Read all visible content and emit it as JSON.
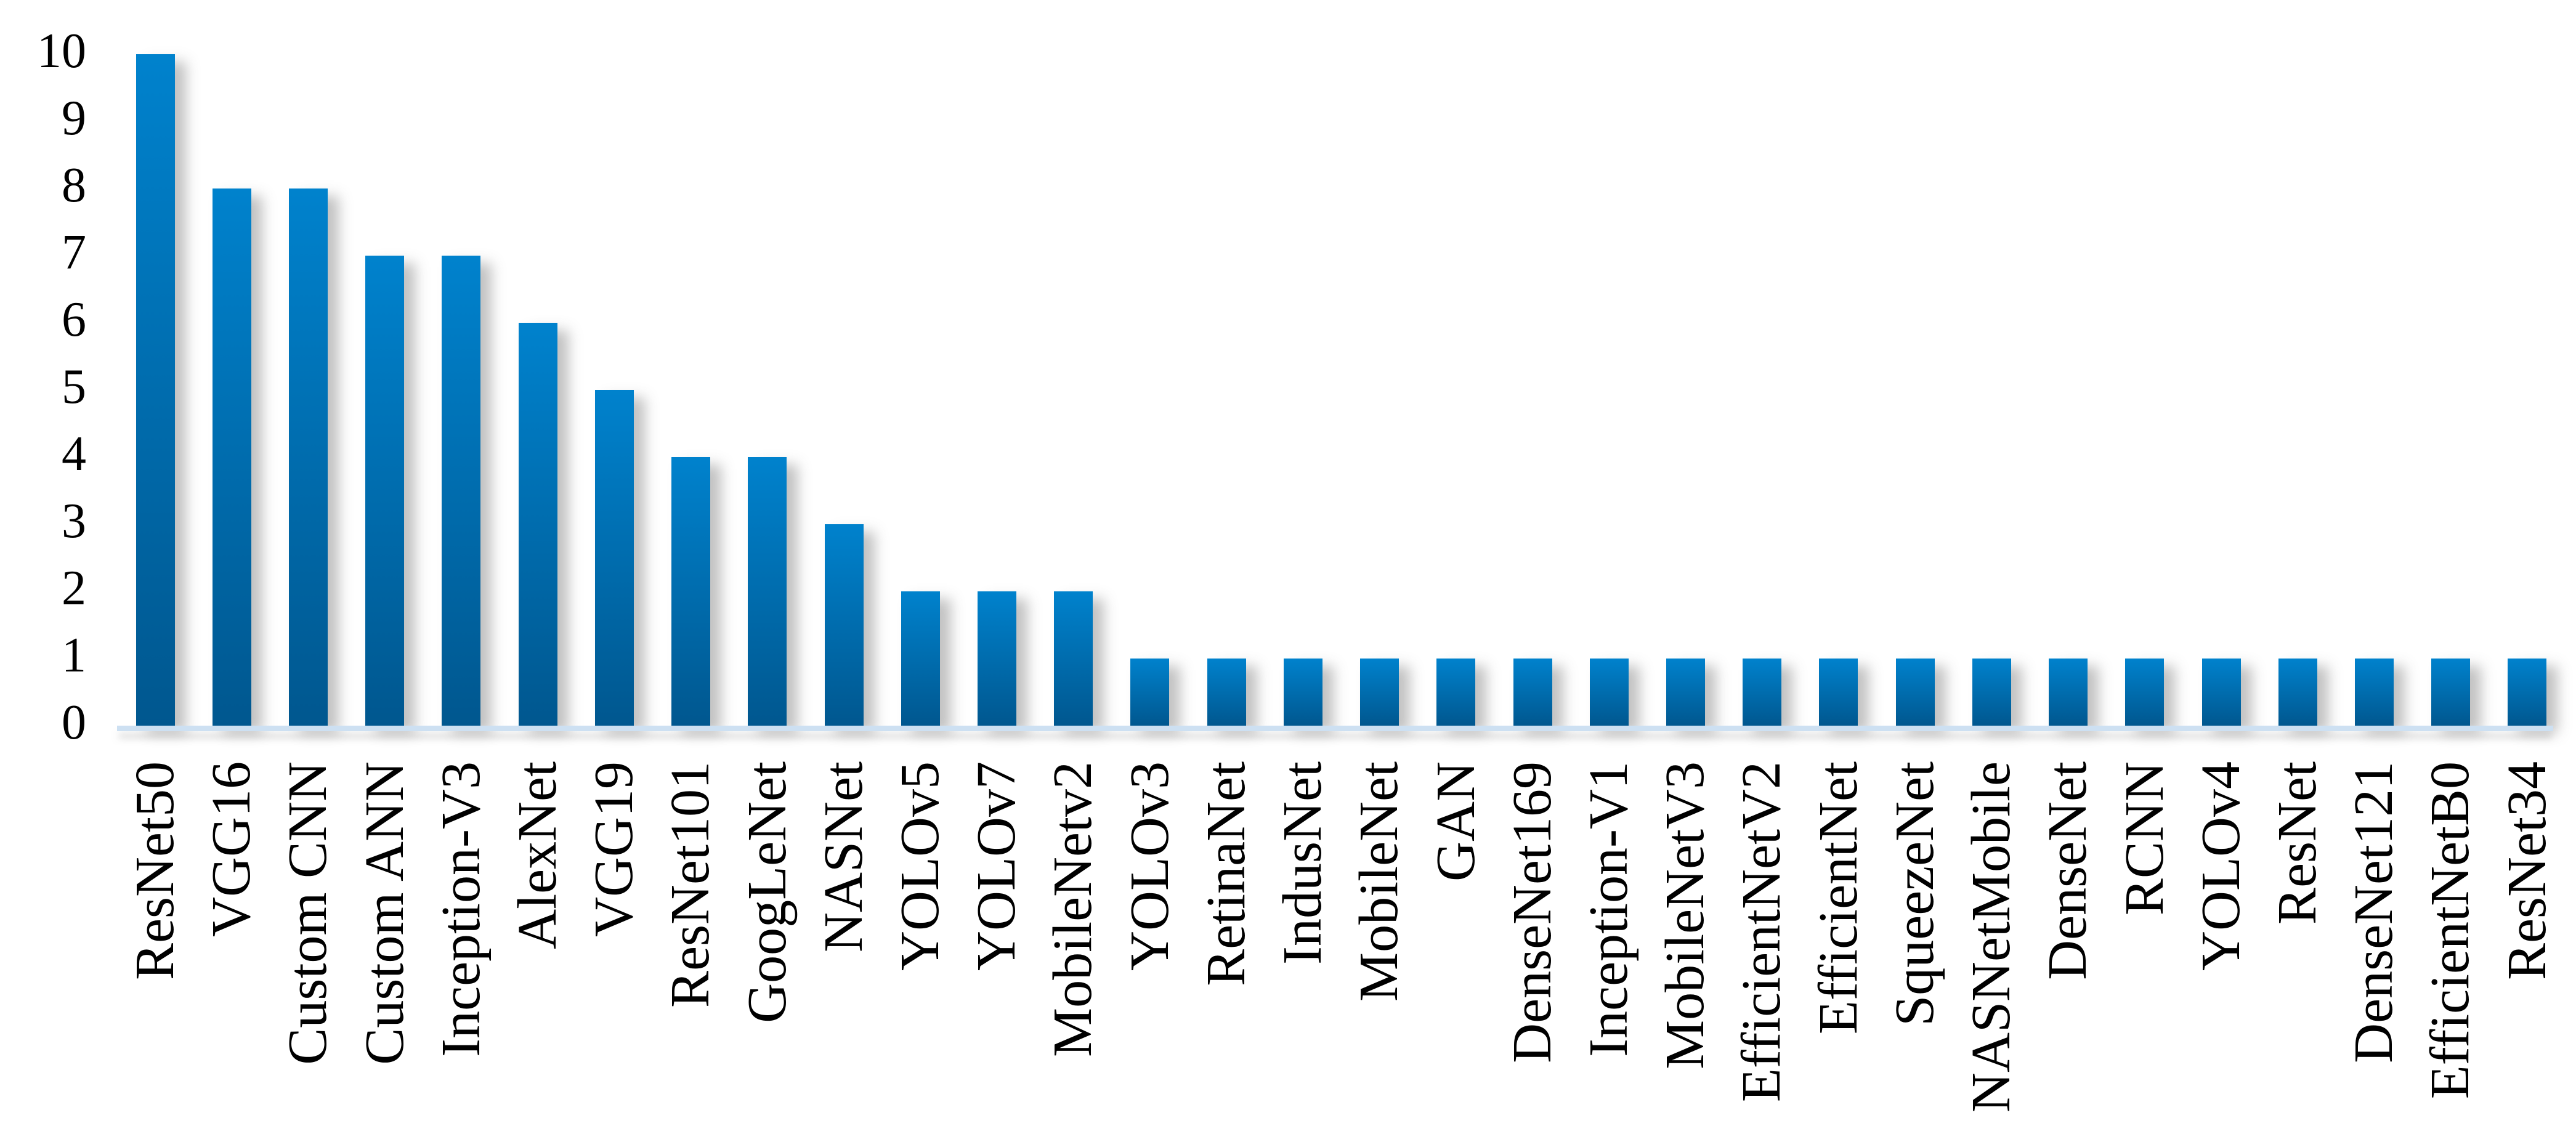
{
  "chart_data": {
    "type": "bar",
    "title": "",
    "xlabel": "",
    "ylabel": "",
    "categories": [
      "ResNet50",
      "VGG16",
      "Custom CNN",
      "Custom ANN",
      "Inception-V3",
      "AlexNet",
      "VGG19",
      "ResNet101",
      "GoogLeNet",
      "NASNet",
      "YOLOv5",
      "YOLOv7",
      "MobileNetv2",
      "YOLOv3",
      "RetinaNet",
      "IndusNet",
      "MobileNet",
      "GAN",
      "DenseNet169",
      "Inception-V1",
      "MobileNetV3",
      "EfficientNetV2",
      "EfficientNet",
      "SqueezeNet",
      "NASNetMobile",
      "DenseNet",
      "RCNN",
      "YOLOv4",
      "ResNet",
      "DenseNet121",
      "EfficientNetB0",
      "ResNet34"
    ],
    "values": [
      10,
      8,
      8,
      7,
      7,
      6,
      5,
      4,
      4,
      3,
      2,
      2,
      2,
      1,
      1,
      1,
      1,
      1,
      1,
      1,
      1,
      1,
      1,
      1,
      1,
      1,
      1,
      1,
      1,
      1,
      1,
      1
    ],
    "ylim": [
      0,
      10
    ],
    "y_ticks": [
      0,
      1,
      2,
      3,
      4,
      5,
      6,
      7,
      8,
      9,
      10
    ],
    "grid": false,
    "legend": null,
    "colors": {
      "bar_gradient_top": "#0082cd",
      "bar_gradient_bottom": "#00578f",
      "axis_line": "#cde0f2",
      "label_text": "#000000",
      "background": "#ffffff"
    }
  }
}
